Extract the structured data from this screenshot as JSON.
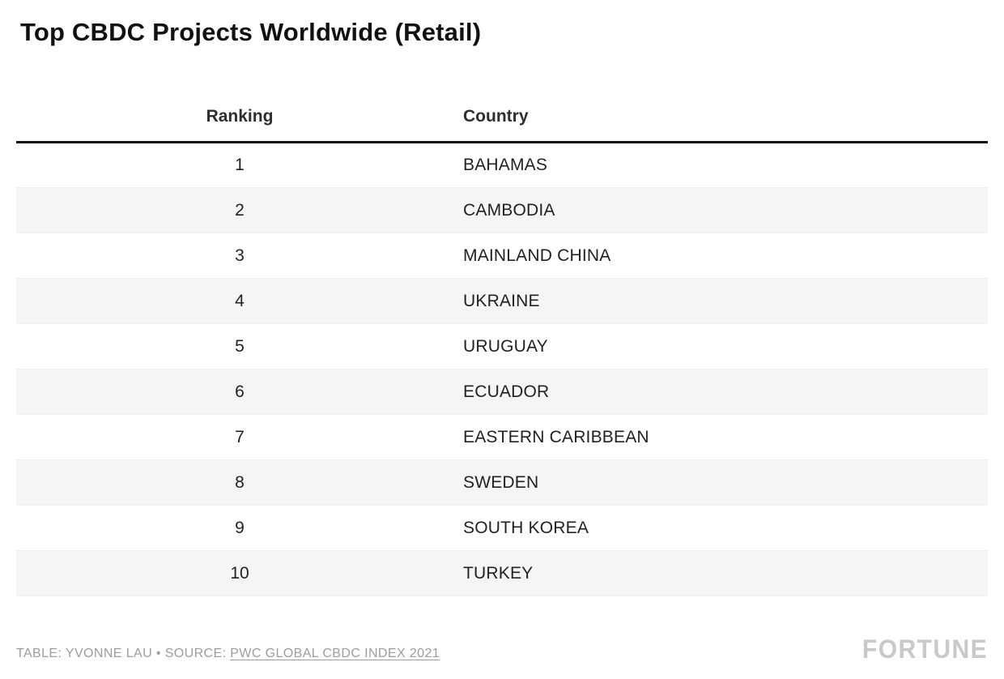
{
  "title": "Top CBDC Projects Worldwide (Retail)",
  "table": {
    "columns": [
      "Ranking",
      "Country"
    ],
    "rows": [
      {
        "ranking": "1",
        "country": "BAHAMAS"
      },
      {
        "ranking": "2",
        "country": "CAMBODIA"
      },
      {
        "ranking": "3",
        "country": "MAINLAND CHINA"
      },
      {
        "ranking": "4",
        "country": "UKRAINE"
      },
      {
        "ranking": "5",
        "country": "URUGUAY"
      },
      {
        "ranking": "6",
        "country": "ECUADOR"
      },
      {
        "ranking": "7",
        "country": "EASTERN CARIBBEAN"
      },
      {
        "ranking": "8",
        "country": "SWEDEN"
      },
      {
        "ranking": "9",
        "country": "SOUTH KOREA"
      },
      {
        "ranking": "10",
        "country": "TURKEY"
      }
    ]
  },
  "footer": {
    "credit_prefix": "TABLE: YVONNE LAU • SOURCE: ",
    "source_link": "PWC GLOBAL CBDC INDEX 2021",
    "brand": "FORTUNE"
  },
  "colors": {
    "row_alt_background": "#f5f5f5",
    "header_rule": "#111111",
    "credit_text": "#9d9d9d",
    "brand_text": "#c9c9c9"
  },
  "chart_data": {
    "type": "table",
    "title": "Top CBDC Projects Worldwide (Retail)",
    "columns": [
      "Ranking",
      "Country"
    ],
    "rows": [
      [
        1,
        "BAHAMAS"
      ],
      [
        2,
        "CAMBODIA"
      ],
      [
        3,
        "MAINLAND CHINA"
      ],
      [
        4,
        "UKRAINE"
      ],
      [
        5,
        "URUGUAY"
      ],
      [
        6,
        "ECUADOR"
      ],
      [
        7,
        "EASTERN CARIBBEAN"
      ],
      [
        8,
        "SWEDEN"
      ],
      [
        9,
        "SOUTH KOREA"
      ],
      [
        10,
        "TURKEY"
      ]
    ],
    "notes": "Ranking column center-aligned; Country column left-aligned uppercase; alternating row shading on even rows",
    "source": "PWC GLOBAL CBDC INDEX 2021",
    "credit": "TABLE: YVONNE LAU"
  }
}
